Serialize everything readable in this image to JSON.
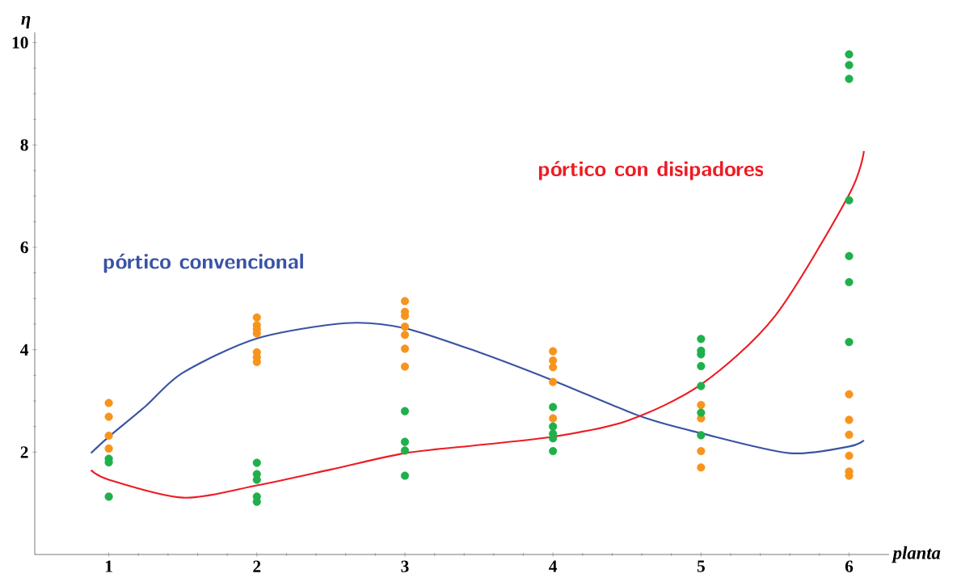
{
  "chart_data": {
    "type": "scatter",
    "xlabel": "planta",
    "ylabel": "η",
    "xlim": [
      0.5,
      6.27
    ],
    "ylim": [
      0,
      10.2
    ],
    "xticks": [
      1,
      2,
      3,
      4,
      5,
      6
    ],
    "yticks": [
      2,
      4,
      6,
      8,
      10
    ],
    "grid": false,
    "legend": false,
    "series": [
      {
        "type": "scatter",
        "color": "#f7941d",
        "marker": "circle",
        "x": [
          1,
          1,
          1,
          1,
          2,
          2,
          2,
          2,
          2,
          2,
          2,
          3,
          3,
          3,
          3,
          3,
          3,
          3,
          4,
          4,
          4,
          4,
          4,
          5,
          5,
          5,
          5,
          6,
          6,
          6,
          6,
          6,
          6
        ],
        "values": [
          2.96,
          2.69,
          2.32,
          2.07,
          4.63,
          4.48,
          4.4,
          4.32,
          3.95,
          3.85,
          3.76,
          4.95,
          4.74,
          4.66,
          4.45,
          4.29,
          4.02,
          3.67,
          3.97,
          3.79,
          3.66,
          3.37,
          2.66,
          2.92,
          2.66,
          2.02,
          1.7,
          3.13,
          2.63,
          2.34,
          1.93,
          1.62,
          1.54
        ]
      },
      {
        "type": "scatter",
        "color": "#1fb04b",
        "marker": "circle",
        "x": [
          1,
          1,
          1,
          2,
          2,
          2,
          2,
          2,
          3,
          3,
          3,
          3,
          4,
          4,
          4,
          4,
          4,
          5,
          5,
          5,
          5,
          5,
          5,
          5,
          6,
          6,
          6,
          6,
          6,
          6,
          6
        ],
        "values": [
          1.87,
          1.8,
          1.13,
          1.79,
          1.57,
          1.46,
          1.13,
          1.03,
          2.8,
          2.2,
          2.03,
          1.54,
          2.88,
          2.5,
          2.36,
          2.27,
          2.02,
          4.21,
          3.98,
          3.91,
          3.68,
          3.29,
          2.77,
          2.33,
          9.77,
          9.56,
          9.29,
          6.92,
          5.83,
          5.32,
          4.15
        ]
      },
      {
        "type": "line",
        "name": "pórtico convencional",
        "color": "#3953a4",
        "line_style": "solid",
        "x": [
          0.88,
          1,
          1.25,
          1.5,
          2,
          2.6,
          3,
          3.5,
          4,
          4.6,
          5,
          5.6,
          6,
          6.1
        ],
        "values": [
          1.98,
          2.3,
          2.9,
          3.55,
          4.22,
          4.52,
          4.42,
          3.95,
          3.4,
          2.69,
          2.37,
          1.98,
          2.11,
          2.23
        ]
      },
      {
        "type": "line",
        "name": "pórtico con disipadores",
        "color": "#ed1c24",
        "line_style": "solid",
        "x": [
          0.88,
          1,
          1.5,
          2,
          2.5,
          3,
          3.5,
          4,
          4.5,
          5,
          5.5,
          6,
          6.1
        ],
        "values": [
          1.65,
          1.46,
          1.11,
          1.35,
          1.66,
          1.98,
          2.14,
          2.3,
          2.61,
          3.32,
          4.66,
          7.03,
          7.88
        ]
      }
    ]
  }
}
